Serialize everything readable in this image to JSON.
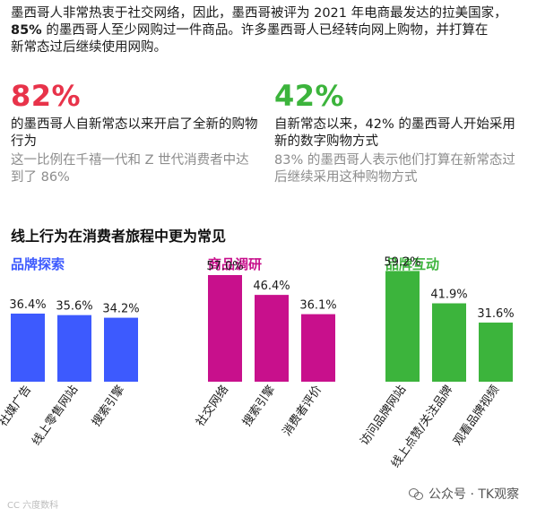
{
  "intro": {
    "line1": "墨西哥人非常热衷于社交网络，因此，墨西哥被评为 2021 年电商最发达的拉美国家，",
    "line2_bold": "85%",
    "line2_rest": " 的墨西哥人至少网购过一件商品。许多墨西哥人已经转向网上购物，并打算在",
    "line3": "新常态过后继续使用网购。"
  },
  "stats": [
    {
      "value": "82%",
      "color": "#e8334a",
      "desc": "的墨西哥人自新常态以来开启了全新的购物行为",
      "sub": "这一比例在千禧一代和 Z 世代消费者中达到了 86%"
    },
    {
      "value": "42%",
      "color": "#3cb43c",
      "desc": "自新常态以来，42% 的墨西哥人开始采用新的数字购物方式",
      "sub": "83% 的墨西哥人表示他们打算在新常态过后继续采用这种购物方式"
    }
  ],
  "section_title": "线上行为在消费者旅程中更为常见",
  "chart_data": [
    {
      "type": "bar",
      "title": "品牌探索",
      "color": "#3d5afe",
      "categories": [
        "社媒广告",
        "线上零售网站",
        "搜索引擎"
      ],
      "values": [
        36.4,
        35.6,
        34.2
      ],
      "labels": [
        "36.4%",
        "35.6%",
        "34.2%"
      ]
    },
    {
      "type": "bar",
      "title": "商品调研",
      "color": "#c8108c",
      "categories": [
        "社交网络",
        "搜索引擎",
        "消费者评价"
      ],
      "values": [
        57.0,
        46.4,
        36.1
      ],
      "labels": [
        "57.0%",
        "46.4%",
        "36.1%"
      ]
    },
    {
      "type": "bar",
      "title": "品牌互动",
      "color": "#3cb43c",
      "categories": [
        "访问品牌网站",
        "线上点赞/关注品牌",
        "观看品牌视频"
      ],
      "values": [
        59.2,
        41.9,
        31.6
      ],
      "labels": [
        "59.2%",
        "41.9%",
        "31.6%"
      ]
    }
  ],
  "footer": "CC 六度数科",
  "watermark": "公众号 · TK观察"
}
